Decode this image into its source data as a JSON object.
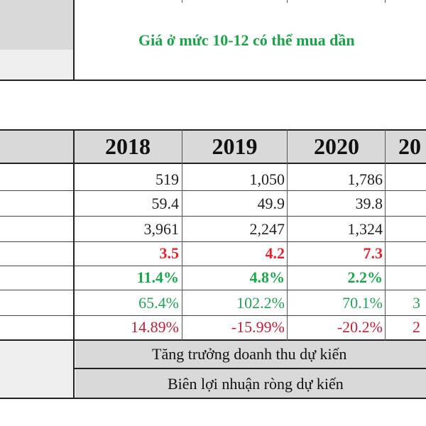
{
  "note": "Giá ở mức 10-12 có thể mua dần",
  "years": [
    "2018",
    "2019",
    "2020",
    "20"
  ],
  "rows": [
    {
      "style": "black",
      "values": [
        "519",
        "1,050",
        "1,786",
        ""
      ]
    },
    {
      "style": "black",
      "values": [
        "59.4",
        "49.9",
        "39.8",
        ""
      ]
    },
    {
      "style": "black",
      "values": [
        "3,961",
        "2,247",
        "1,324",
        ""
      ]
    },
    {
      "style": "red",
      "values": [
        "3.5",
        "4.2",
        "7.3",
        ""
      ]
    },
    {
      "style": "green",
      "values": [
        "11.4%",
        "4.8%",
        "2.2%",
        ""
      ]
    },
    {
      "style": "greenp",
      "values": [
        "65.4%",
        "102.2%",
        "70.1%",
        "3"
      ]
    },
    {
      "style": "redp",
      "values": [
        "14.89%",
        "-15.99%",
        "-20.2%",
        "2"
      ]
    }
  ],
  "footer": {
    "row1": "Tăng trưởng doanh thu dự kiến",
    "row2": "Biên lợi nhuận ròng dự kiến"
  }
}
